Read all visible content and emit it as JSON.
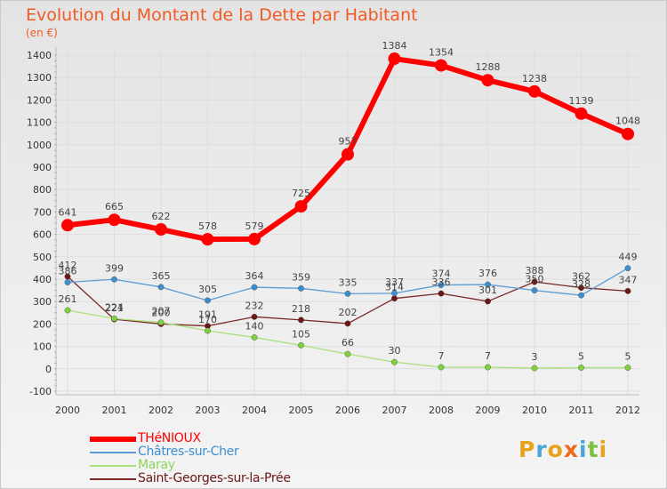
{
  "header": {
    "title": "Evolution du Montant de la Dette par Habitant",
    "subtitle": "(en €)"
  },
  "chart_data": {
    "type": "line",
    "title": "Evolution du Montant de la Dette par Habitant",
    "ylabel": "(en €)",
    "xlabel": "",
    "ylim": [
      -100,
      1400
    ],
    "yticks": [
      -100,
      0,
      100,
      200,
      300,
      400,
      500,
      600,
      700,
      800,
      900,
      1000,
      1100,
      1200,
      1300,
      1400
    ],
    "categories": [
      "2000",
      "2001",
      "2002",
      "2003",
      "2004",
      "2005",
      "2006",
      "2007",
      "2008",
      "2009",
      "2010",
      "2011",
      "2012"
    ],
    "series": [
      {
        "name": "THéNIOUX",
        "color": "#ff0000",
        "marker": "#ff0000",
        "values": [
          641,
          665,
          622,
          578,
          579,
          725,
          957,
          1384,
          1354,
          1288,
          1238,
          1139,
          1048
        ]
      },
      {
        "name": "Châtres-sur-Cher",
        "color": "#5b9bd5",
        "marker": "#3c8fd0",
        "values": [
          386,
          399,
          365,
          305,
          364,
          359,
          335,
          337,
          374,
          376,
          350,
          328,
          449
        ]
      },
      {
        "name": "Maray",
        "color": "#a8e07a",
        "marker": "#7ed23c",
        "values": [
          261,
          224,
          207,
          170,
          140,
          105,
          66,
          30,
          7,
          7,
          3,
          5,
          5
        ]
      },
      {
        "name": "Saint-Georges-sur-la-Prée",
        "color": "#7a2828",
        "marker": "#6b1717",
        "values": [
          412,
          221,
          200,
          191,
          232,
          218,
          202,
          314,
          336,
          301,
          388,
          362,
          347
        ]
      }
    ]
  },
  "legend": {
    "items": [
      "THéNIOUX",
      "Châtres-sur-Cher",
      "Maray",
      "Saint-Georges-sur-la-Prée"
    ]
  },
  "brand": {
    "letters": [
      "P",
      "r",
      "o",
      "x",
      "i",
      "t",
      "i"
    ],
    "colors": [
      "#e8a21c",
      "#4aa6d8",
      "#e8a21c",
      "#f06a1e",
      "#4aa6d8",
      "#7cc242",
      "#e8a21c"
    ]
  }
}
